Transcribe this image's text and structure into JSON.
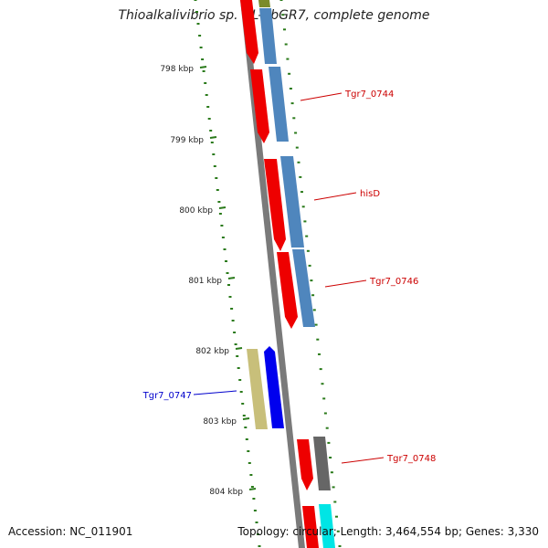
{
  "title": "Thioalkalivibrio sp. HL-EbGR7, complete genome",
  "footer": {
    "accession": "Accession: NC_011901",
    "info": "Topology: circular; Length: 3,464,554 bp; Genes: 3,330"
  },
  "scale": {
    "ticks": [
      "798 kbp",
      "799 kbp",
      "800 kbp",
      "801 kbp",
      "802 kbp",
      "803 kbp",
      "804 kbp"
    ]
  },
  "gene_labels": [
    {
      "text": "Tgr7_0744",
      "color": "#cc0000"
    },
    {
      "text": "hisD",
      "color": "#cc0000"
    },
    {
      "text": "Tgr7_0746",
      "color": "#cc0000"
    },
    {
      "text": "Tgr7_0747",
      "color": "#0000cc"
    },
    {
      "text": "Tgr7_0748",
      "color": "#cc0000"
    }
  ],
  "colors": {
    "backbone": "#7a7a7a",
    "gene_forward": "#ee0000",
    "gene_reverse": "#0000ee",
    "cds_track": "#4f86bd",
    "cds_track_reverse": "#c8bf7a",
    "gray_track": "#666666",
    "cyan_track": "#00e5e5",
    "olive_track": "#7b8b2a",
    "dots": "#2a7a1a"
  }
}
